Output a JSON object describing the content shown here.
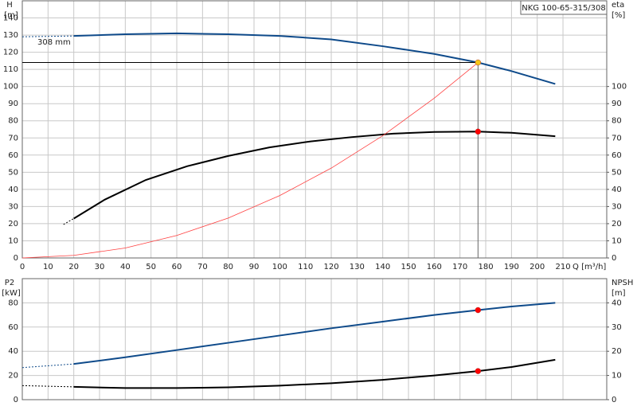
{
  "chart_data": [
    {
      "type": "line",
      "title": "NKG 100-65-315/308",
      "annotation": "308 mm",
      "ylabel": "H",
      "yunit": "[m]",
      "y2label": "eta",
      "y2unit": "[%]",
      "xlabel": "Q [m³/h]",
      "xlim": [
        0,
        227
      ],
      "xticks": [
        0,
        10,
        20,
        30,
        40,
        50,
        60,
        70,
        80,
        90,
        100,
        110,
        120,
        130,
        140,
        150,
        160,
        170,
        180,
        190,
        200,
        210
      ],
      "xtick_labels": true,
      "ylim": [
        0,
        150
      ],
      "yticks": [
        0,
        10,
        20,
        30,
        40,
        50,
        60,
        70,
        80,
        90,
        100,
        110,
        120,
        130,
        140
      ],
      "y2lim": [
        0,
        150
      ],
      "y2ticks": [
        0,
        10,
        20,
        30,
        40,
        50,
        60,
        70,
        80,
        90,
        100
      ],
      "grid": true,
      "series": [
        {
          "color": "#0e4a8a",
          "style": "dashed",
          "x": [
            0,
            20
          ],
          "values": [
            129,
            129.5
          ]
        },
        {
          "color": "#0e4a8a",
          "style": "solid",
          "x": [
            20,
            40,
            60,
            80,
            100,
            120,
            140,
            160,
            177,
            190,
            207
          ],
          "values": [
            129.5,
            130.5,
            131,
            130.5,
            129.5,
            127.5,
            123.5,
            119,
            114,
            109,
            101.5
          ]
        },
        {
          "color": "#000000",
          "style": "dashed",
          "axis": "y2",
          "x": [
            16,
            20
          ],
          "values": [
            19.5,
            23
          ]
        },
        {
          "color": "#000000",
          "style": "solid",
          "axis": "y2",
          "x": [
            20,
            32,
            48,
            64,
            80,
            96,
            112,
            128,
            144,
            160,
            177,
            190,
            207
          ],
          "values": [
            23,
            34,
            45.5,
            53.5,
            59.5,
            64.5,
            68,
            70.5,
            72.5,
            73.5,
            73.7,
            73,
            71
          ]
        },
        {
          "color": "#ff4040",
          "style": "thin",
          "x": [
            0,
            20,
            40,
            60,
            80,
            100,
            120,
            140,
            160,
            177
          ],
          "values": [
            0,
            1.5,
            5.8,
            13.1,
            23.3,
            36.4,
            52.4,
            71.3,
            93.2,
            114
          ]
        }
      ],
      "markers": [
        {
          "x": 177,
          "y": 114,
          "color": "#f5c518",
          "guides": true
        },
        {
          "x": 177,
          "y": 73.7,
          "color": "#ff0000",
          "axis": "y2"
        }
      ]
    },
    {
      "type": "line",
      "ylabel": "P2",
      "yunit": "[kW]",
      "y2label": "NPSH",
      "y2unit": "[m]",
      "xlim": [
        0,
        227
      ],
      "xticks": [
        0,
        10,
        20,
        30,
        40,
        50,
        60,
        70,
        80,
        90,
        100,
        110,
        120,
        130,
        140,
        150,
        160,
        170,
        180,
        190,
        200,
        210
      ],
      "xtick_labels": false,
      "ylim": [
        0,
        100
      ],
      "yticks": [
        0,
        20,
        40,
        60,
        80
      ],
      "y2lim": [
        0,
        50
      ],
      "y2ticks": [
        0,
        10,
        20,
        30,
        40
      ],
      "grid": true,
      "series": [
        {
          "color": "#0e4a8a",
          "style": "dashed",
          "x": [
            0,
            20
          ],
          "values": [
            26.5,
            29.5
          ]
        },
        {
          "color": "#0e4a8a",
          "style": "solid",
          "x": [
            20,
            40,
            60,
            80,
            100,
            120,
            140,
            160,
            177,
            190,
            207
          ],
          "values": [
            29.5,
            35,
            41,
            47,
            53,
            59,
            64.5,
            70,
            74,
            77,
            80
          ]
        },
        {
          "color": "#000000",
          "style": "dashed",
          "axis": "y2",
          "x": [
            0,
            20
          ],
          "values": [
            5.8,
            5.3
          ]
        },
        {
          "color": "#000000",
          "style": "solid",
          "axis": "y2",
          "x": [
            20,
            40,
            60,
            80,
            100,
            120,
            140,
            160,
            177,
            190,
            207
          ],
          "values": [
            5.3,
            4.8,
            4.8,
            5.1,
            5.8,
            6.8,
            8.2,
            10,
            11.8,
            13.5,
            16.5
          ]
        }
      ],
      "markers": [
        {
          "x": 177,
          "y": 74,
          "color": "#ff0000"
        },
        {
          "x": 177,
          "y": 11.8,
          "color": "#ff0000",
          "axis": "y2"
        }
      ]
    }
  ]
}
